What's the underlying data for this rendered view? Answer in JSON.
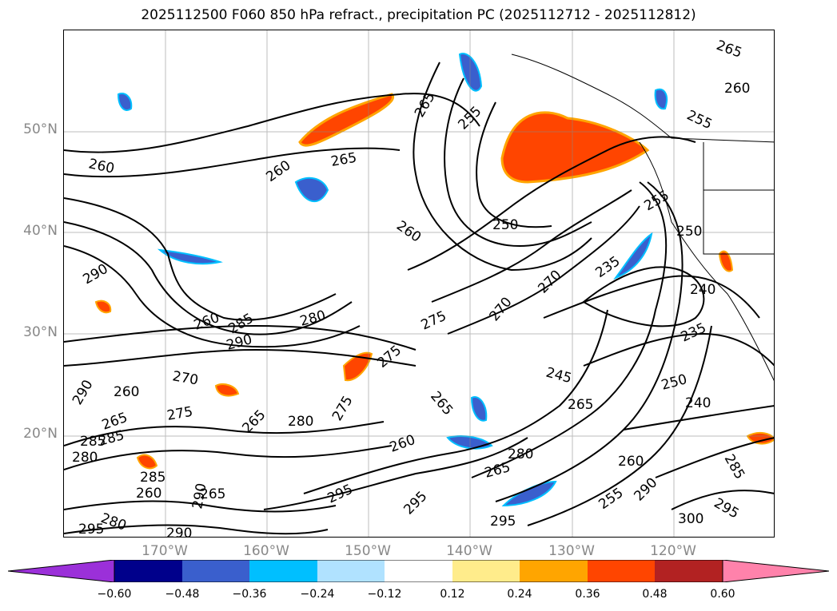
{
  "title": "2025112500 F060 850 hPa refract., precipitation PC (2025112712 - 2025112812)",
  "axes": {
    "lat_labels": [
      "50°N",
      "40°N",
      "30°N",
      "20°N"
    ],
    "lon_labels": [
      "170°W",
      "160°W",
      "150°W",
      "140°W",
      "130°W",
      "120°W"
    ]
  },
  "colorbar": {
    "colors": [
      "#9b30d9",
      "#00008b",
      "#3a5fcd",
      "#00bfff",
      "#b0e2ff",
      "#ffffff",
      "#ffec8b",
      "#ffa500",
      "#ff4500",
      "#b22222",
      "#ff82ab"
    ],
    "ticks": [
      "−0.60",
      "−0.48",
      "−0.36",
      "−0.24",
      "−0.12",
      "0.12",
      "0.24",
      "0.36",
      "0.48",
      "0.60"
    ]
  },
  "contour_labels": [
    "265",
    "260",
    "255",
    "265",
    "260",
    "265",
    "260",
    "250",
    "260",
    "255",
    "255",
    "250",
    "290",
    "260",
    "285",
    "280",
    "270",
    "275",
    "270",
    "235",
    "240",
    "235",
    "290",
    "260",
    "270",
    "275",
    "265",
    "275",
    "245",
    "250",
    "240",
    "265",
    "290",
    "285",
    "265",
    "275",
    "280",
    "260",
    "265",
    "280",
    "260",
    "285",
    "280",
    "285",
    "260",
    "265",
    "265",
    "295",
    "295",
    "295",
    "255",
    "290",
    "300",
    "295",
    "285",
    "280",
    "290",
    "295",
    "290"
  ],
  "colors": {
    "contour": "#000000",
    "grid": "#888888"
  }
}
